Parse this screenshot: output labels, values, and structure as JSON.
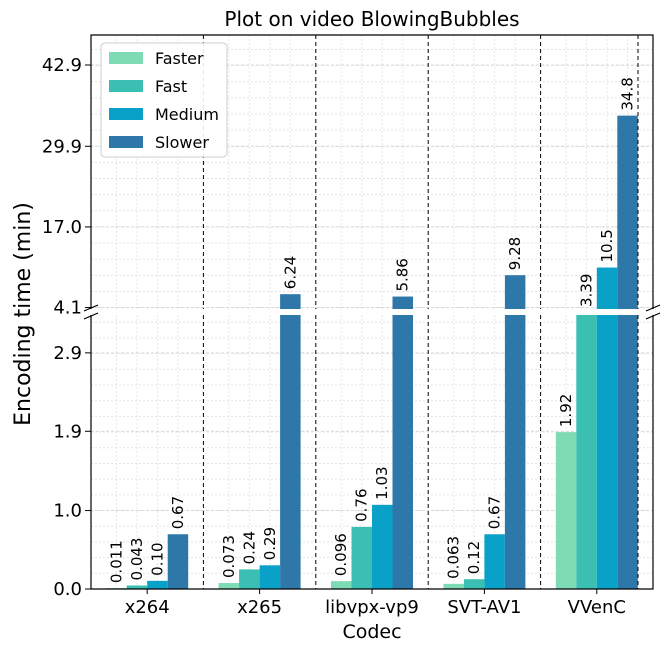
{
  "chart_data": {
    "type": "bar",
    "title": "Plot on video BlowingBubbles",
    "xlabel": "Codec",
    "ylabel": "Encoding time (min)",
    "categories": [
      "x264",
      "x265",
      "libvpx-vp9",
      "SVT-AV1",
      "VVenC"
    ],
    "series": [
      {
        "name": "Faster",
        "color": "#7fdbb4",
        "values": [
          0.011,
          0.073,
          0.096,
          0.063,
          1.92
        ],
        "labels": [
          "0.011",
          "0.073",
          "0.096",
          "0.063",
          "1.92"
        ]
      },
      {
        "name": "Fast",
        "color": "#3cbfb3",
        "values": [
          0.043,
          0.24,
          0.76,
          0.12,
          3.39
        ],
        "labels": [
          "0.043",
          "0.24",
          "0.76",
          "0.12",
          "3.39"
        ]
      },
      {
        "name": "Medium",
        "color": "#0aa1c9",
        "values": [
          0.1,
          0.29,
          1.03,
          0.67,
          10.5
        ],
        "labels": [
          "0.10",
          "0.29",
          "1.03",
          "0.67",
          "10.5"
        ]
      },
      {
        "name": "Slower",
        "color": "#2e78a9",
        "values": [
          0.67,
          6.24,
          5.86,
          9.28,
          34.8
        ],
        "labels": [
          "0.67",
          "6.24",
          "5.86",
          "9.28",
          "34.8"
        ]
      }
    ],
    "y_axis": {
      "broken": true,
      "lower_range": [
        0,
        3.39
      ],
      "upper_range": [
        3.39,
        47.7
      ],
      "lower_ticks": [
        "0.0",
        "1.0",
        "1.9",
        "2.9"
      ],
      "lower_tick_values": [
        0.0,
        0.96,
        1.93,
        2.89
      ],
      "upper_ticks": [
        "4.1",
        "17.0",
        "29.9",
        "42.9"
      ],
      "upper_tick_values": [
        4.1,
        17.0,
        29.9,
        42.9
      ]
    },
    "grid": true,
    "legend": "top-left"
  }
}
